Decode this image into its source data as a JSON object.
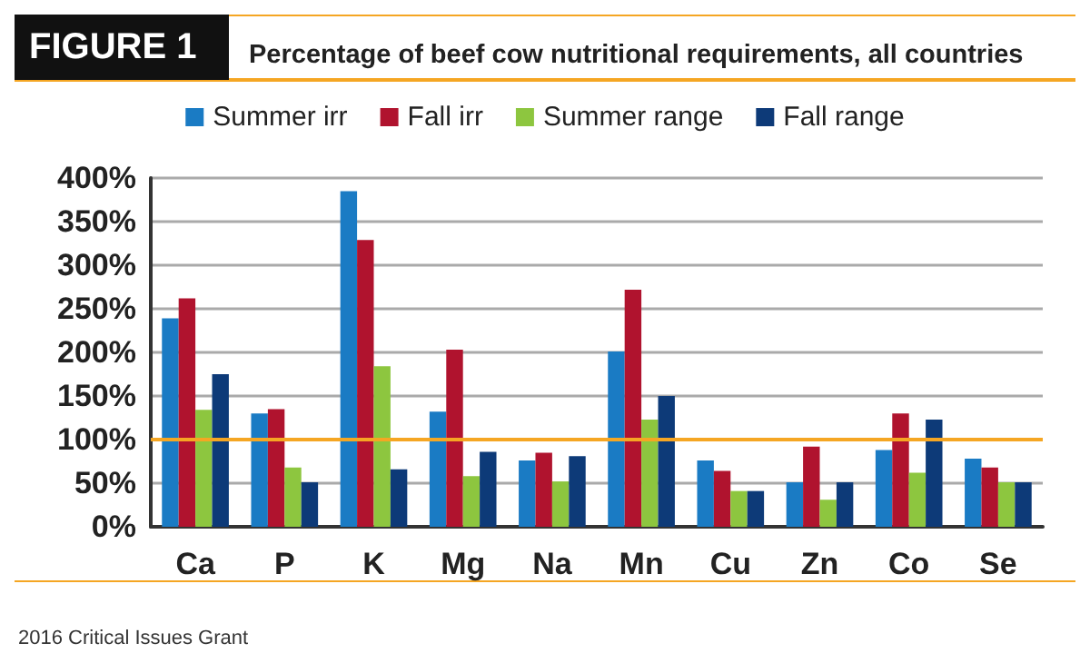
{
  "chart_data": {
    "type": "bar",
    "title": "Percentage of beef cow nutritional requirements, all countries",
    "annotations": [
      "FIGURE 1",
      "2016 Critical Issues Grant"
    ],
    "categories": [
      "Ca",
      "P",
      "K",
      "Mg",
      "Na",
      "Mn",
      "Cu",
      "Zn",
      "Co",
      "Se"
    ],
    "series": [
      {
        "name": "Summer irr",
        "color": "#1a7bc4",
        "values": [
          239,
          130,
          385,
          132,
          76,
          201,
          76,
          51,
          88,
          78
        ]
      },
      {
        "name": "Fall irr",
        "color": "#b0132e",
        "values": [
          262,
          135,
          329,
          203,
          85,
          272,
          64,
          92,
          130,
          68
        ]
      },
      {
        "name": "Summer range",
        "color": "#8dc63f",
        "values": [
          134,
          68,
          184,
          58,
          52,
          123,
          41,
          31,
          62,
          51
        ]
      },
      {
        "name": "Fall range",
        "color": "#0d3a78",
        "values": [
          175,
          51,
          66,
          86,
          81,
          150,
          41,
          51,
          123,
          51
        ]
      }
    ],
    "ylim": [
      0,
      400
    ],
    "yticks": [
      {
        "value": 0,
        "label": "0%"
      },
      {
        "value": 50,
        "label": "50%"
      },
      {
        "value": 100,
        "label": "100%"
      },
      {
        "value": 150,
        "label": "150%"
      },
      {
        "value": 200,
        "label": "200%"
      },
      {
        "value": 250,
        "label": "250%"
      },
      {
        "value": 300,
        "label": "300%"
      },
      {
        "value": 350,
        "label": "350%"
      },
      {
        "value": 400,
        "label": "400%"
      }
    ],
    "ref_lines": [
      {
        "axis": "y",
        "value": 100,
        "color": "#f5a623"
      }
    ],
    "grid": "y",
    "legend": "top"
  }
}
